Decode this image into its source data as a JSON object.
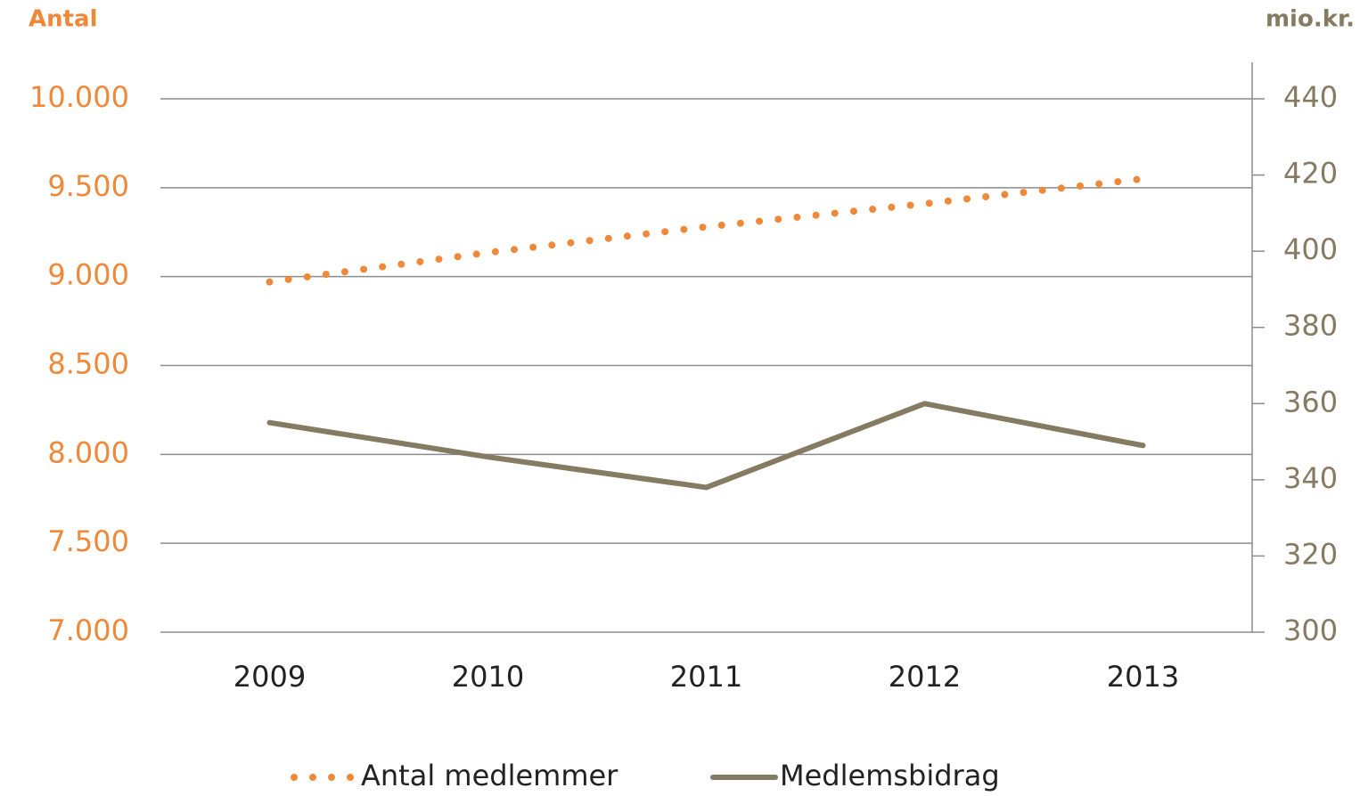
{
  "chart_data": {
    "type": "line",
    "ylabel": "Antal",
    "y2label": "mio.kr.",
    "categories": [
      "2009",
      "2010",
      "2011",
      "2012",
      "2013"
    ],
    "series": [
      {
        "name": "Antal medlemmer",
        "color": "#f0883a",
        "style": "dotted",
        "values": [
          8970,
          9135,
          9280,
          9410,
          9550
        ]
      },
      {
        "name": "Medlemsbidrag",
        "color": "#847b62",
        "style": "solid",
        "axis": "y2",
        "values": [
          355,
          346,
          338,
          360,
          349
        ]
      }
    ],
    "ylim": [
      7000,
      10000
    ],
    "yticks": [
      {
        "value": 7000,
        "label": "7.000"
      },
      {
        "value": 7500,
        "label": "7.500"
      },
      {
        "value": 8000,
        "label": "8.000"
      },
      {
        "value": 8500,
        "label": "8.500"
      },
      {
        "value": 9000,
        "label": "9.000"
      },
      {
        "value": 9500,
        "label": "9.500"
      },
      {
        "value": 10000,
        "label": "10.000"
      }
    ],
    "y2lim": [
      300,
      440
    ],
    "y2ticks": [
      300,
      320,
      340,
      360,
      380,
      400,
      420,
      440
    ],
    "grid": true,
    "legend": "bottom"
  }
}
